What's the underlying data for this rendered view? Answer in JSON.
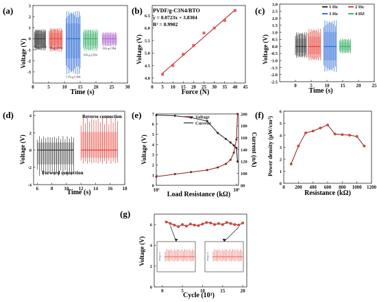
{
  "panels": {
    "a": {
      "label": "(a)",
      "xlabel": "Time (s)",
      "ylabel": "Voltage (V)"
    },
    "b": {
      "label": "(b)",
      "xlabel": "Force (N)",
      "ylabel": "Voltage (V)",
      "title": "PVDF/g-C3N4/BTO",
      "equation": "y = 0.0723x + 3.8304",
      "r2": "R² = 0.9902"
    },
    "c": {
      "label": "(c)",
      "xlabel": "Time (s)",
      "ylabel": "Voltage (V)"
    },
    "d": {
      "label": "(d)",
      "xlabel": "Time (s)",
      "ylabel": "Voltage (V)",
      "annotation_reverse": "Reverse connection",
      "annotation_forward": "Forword connection"
    },
    "e": {
      "label": "(e)",
      "xlabel": "Load Resistance (kΩ)",
      "ylabel_left": "Voltage (V)",
      "ylabel_right": "Current (nA)"
    },
    "f": {
      "label": "(f)",
      "xlabel": "Resistance (kΩ)",
      "ylabel": "Power density (µW/cm²)"
    },
    "g": {
      "label": "(g)",
      "xlabel": "Cycle (10³)",
      "ylabel": "Voltage (V)",
      "inset_ylabel": "Voltage (V)"
    }
  },
  "colors": {
    "a_series": [
      "#3a3a3a",
      "#e8433a",
      "#2f6fd6",
      "#3db36b",
      "#b06ad0"
    ],
    "c_series": [
      "#3a3a3a",
      "#e8433a",
      "#2f6fd6",
      "#3db36b"
    ],
    "d_forward": "#3a3a3a",
    "d_reverse": "#e8433a",
    "fit_line": "#a01515",
    "marker": "#e8433a",
    "line_dark": "#8b1a1a"
  },
  "chart_data": [
    {
      "id": "a",
      "type": "line",
      "xlim": [
        0,
        30
      ],
      "ylim": [
        -4,
        3
      ],
      "xticks": [
        0,
        5,
        10,
        15,
        20,
        25,
        30
      ],
      "yticks": [
        -3,
        -2,
        -1,
        0,
        1,
        2,
        3
      ],
      "bursts": [
        {
          "name": "0% g-C3N4",
          "x": [
            0.5,
            4
          ],
          "amp": [
            0.85,
            -1.05
          ]
        },
        {
          "name": "2% g-C3N4",
          "x": [
            5.2,
            9.3
          ],
          "amp": [
            0.95,
            -1.15
          ]
        },
        {
          "name": "5.5% g-C3N4",
          "x": [
            10.5,
            15
          ],
          "amp": [
            2.5,
            -3.2
          ]
        },
        {
          "name": "10% g-C3N4",
          "x": [
            16,
            20.5
          ],
          "amp": [
            0.85,
            -1.1
          ]
        },
        {
          "name": "15% g-C3N4",
          "x": [
            22,
            26.5
          ],
          "amp": [
            0.6,
            -0.7
          ]
        }
      ]
    },
    {
      "id": "b",
      "type": "scatter",
      "xlim": [
        0,
        45
      ],
      "ylim": [
        3.8,
        6.9
      ],
      "xticks": [
        0,
        5,
        10,
        15,
        20,
        25,
        30,
        35,
        40,
        45
      ],
      "yticks": [
        4.0,
        4.5,
        5.0,
        5.5,
        6.0,
        6.5
      ],
      "x": [
        5,
        10,
        15,
        20,
        25,
        30,
        35,
        40
      ],
      "y": [
        4.15,
        4.5,
        4.95,
        5.3,
        5.8,
        6.0,
        6.3,
        6.7
      ],
      "fit": {
        "slope": 0.0723,
        "intercept": 3.8304
      }
    },
    {
      "id": "c",
      "type": "line",
      "xlim": [
        -5,
        25
      ],
      "ylim": [
        -2.5,
        3
      ],
      "xticks": [
        0,
        5,
        10,
        15,
        20,
        25
      ],
      "yticks": [
        -2.5,
        -2.0,
        -1.5,
        -1.0,
        -0.5,
        0.0,
        0.5,
        1.0,
        1.5,
        2.0,
        2.5,
        3.0
      ],
      "legend": [
        "1 Hz",
        "2 Hz",
        "3 Hz",
        "4 HZ"
      ],
      "bursts": [
        {
          "name": "1 Hz",
          "x": [
            0,
            3.5
          ],
          "amp": [
            1.0,
            -0.8
          ]
        },
        {
          "name": "2 Hz",
          "x": [
            4,
            8
          ],
          "amp": [
            1.25,
            -1.0
          ]
        },
        {
          "name": "3 Hz",
          "x": [
            9,
            13
          ],
          "amp": [
            1.85,
            -1.8
          ]
        },
        {
          "name": "4 HZ",
          "x": [
            14,
            17.5
          ],
          "amp": [
            0.55,
            -0.5
          ]
        }
      ]
    },
    {
      "id": "d",
      "type": "line",
      "xlim": [
        5.5,
        18
      ],
      "ylim": [
        -4,
        4.5
      ],
      "xticks": [
        6,
        8,
        10,
        12,
        14,
        16,
        18
      ],
      "yticks": [
        -4,
        -2,
        0,
        2,
        4
      ],
      "bursts": [
        {
          "name": "Forward",
          "x": [
            6,
            11
          ],
          "amp": [
            1.6,
            -3.0
          ]
        },
        {
          "name": "Reverse",
          "x": [
            12,
            17
          ],
          "amp": [
            3.8,
            -1.6
          ]
        }
      ]
    },
    {
      "id": "e",
      "type": "line",
      "xscale": "log",
      "xlim": [
        100,
        120000
      ],
      "ylim_left": [
        0,
        7
      ],
      "ylim_right": [
        80,
        200
      ],
      "yticks_left": [
        0,
        1,
        2,
        3,
        4,
        5,
        6,
        7
      ],
      "yticks_right": [
        80,
        100,
        120,
        140,
        160,
        180,
        200
      ],
      "xticklabels": [
        "10²",
        "10⁵"
      ],
      "legend": [
        "Voltage",
        "Current"
      ],
      "series": [
        {
          "name": "Voltage",
          "axis": "left",
          "x": [
            100,
            500,
            2000,
            8000,
            20000,
            40000,
            60000,
            80000,
            100000,
            110000
          ],
          "y": [
            0.85,
            1.1,
            1.3,
            1.5,
            1.75,
            2.1,
            2.5,
            3.2,
            4.5,
            7.0
          ]
        },
        {
          "name": "Current",
          "axis": "right",
          "x": [
            100,
            500,
            2000,
            8000,
            20000,
            40000,
            60000,
            80000,
            100000,
            110000
          ],
          "y": [
            198,
            197,
            194,
            188,
            168,
            158,
            152,
            147,
            143,
            120
          ]
        }
      ]
    },
    {
      "id": "f",
      "type": "line",
      "xlim": [
        0,
        1200
      ],
      "ylim": [
        0,
        6
      ],
      "xticks": [
        0,
        200,
        400,
        600,
        800,
        1000,
        1200
      ],
      "yticks": [
        0,
        1,
        2,
        3,
        4,
        5,
        6
      ],
      "x": [
        100,
        200,
        300,
        400,
        500,
        600,
        700,
        800,
        900,
        1000,
        1100
      ],
      "y": [
        1.6,
        3.1,
        4.2,
        4.35,
        4.6,
        4.85,
        4.1,
        4.05,
        4.0,
        3.9,
        3.1
      ]
    },
    {
      "id": "g",
      "type": "line",
      "xlim": [
        -2,
        21
      ],
      "ylim": [
        0,
        7
      ],
      "xticks": [
        0,
        5,
        10,
        15,
        20
      ],
      "yticks": [
        0,
        2,
        4,
        6
      ],
      "x": [
        1,
        2,
        3,
        4,
        5,
        6,
        7,
        8,
        9,
        10,
        11,
        12,
        13,
        14,
        15,
        16,
        17,
        18,
        19,
        20
      ],
      "y": [
        6.25,
        6.1,
        5.95,
        5.8,
        6.0,
        5.85,
        6.05,
        5.95,
        5.9,
        6.05,
        6.2,
        6.15,
        6.0,
        6.1,
        6.0,
        6.2,
        6.1,
        6.0,
        5.95,
        6.15
      ]
    }
  ]
}
